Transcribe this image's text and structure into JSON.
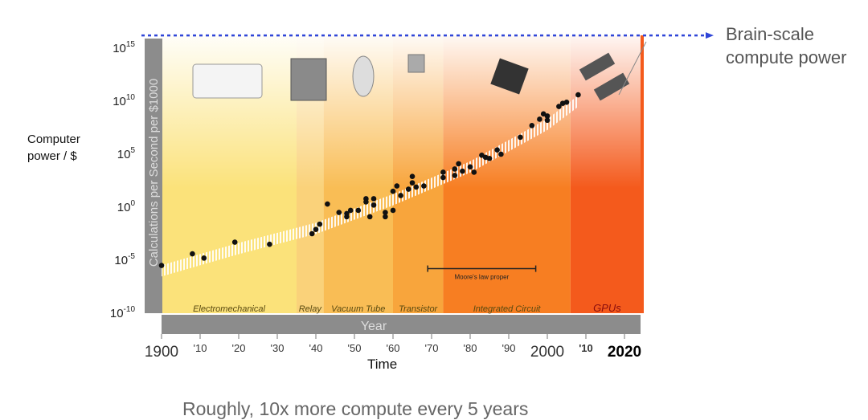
{
  "chart_data": {
    "type": "scatter",
    "title": "",
    "xlabel": "Time",
    "inner_xlabel": "Year",
    "ylabel": "Computer power / $",
    "inner_ylabel": "Calculations per Second per $1000",
    "y_scale": "log",
    "xlim": [
      1900,
      2025
    ],
    "ylim_log10": [
      -10,
      16.2
    ],
    "x_ticks": [
      {
        "value": 1900,
        "label": "1900"
      },
      {
        "value": 1910,
        "label": "'10"
      },
      {
        "value": 1920,
        "label": "'20"
      },
      {
        "value": 1930,
        "label": "'30"
      },
      {
        "value": 1940,
        "label": "'40"
      },
      {
        "value": 1950,
        "label": "'50"
      },
      {
        "value": 1960,
        "label": "'60"
      },
      {
        "value": 1970,
        "label": "'70"
      },
      {
        "value": 1980,
        "label": "'80"
      },
      {
        "value": 1990,
        "label": "'90"
      },
      {
        "value": 2000,
        "label": "2000"
      },
      {
        "value": 2010,
        "label": "'10"
      },
      {
        "value": 2020,
        "label": "2020"
      }
    ],
    "y_ticks": [
      {
        "exp": 15,
        "label": "10",
        "sup": "15"
      },
      {
        "exp": 10,
        "label": "10",
        "sup": "10"
      },
      {
        "exp": 5,
        "label": "10",
        "sup": "5"
      },
      {
        "exp": 0,
        "label": "10",
        "sup": "0"
      },
      {
        "exp": -5,
        "label": "10",
        "sup": "-5"
      },
      {
        "exp": -10,
        "label": "10",
        "sup": "-10"
      }
    ],
    "eras": [
      {
        "name": "Electromechanical",
        "start": 1900,
        "end": 1935,
        "color": "#fbe27a"
      },
      {
        "name": "Relay",
        "start": 1935,
        "end": 1942,
        "color": "#fad27a"
      },
      {
        "name": "Vacuum Tube",
        "start": 1942,
        "end": 1960,
        "color": "#f9bd55"
      },
      {
        "name": "Transistor",
        "start": 1960,
        "end": 1973,
        "color": "#f8a53c"
      },
      {
        "name": "Integrated Circuit",
        "start": 1973,
        "end": 2006,
        "color": "#f77e22"
      },
      {
        "name": "GPUs",
        "start": 2006,
        "end": 2025,
        "color": "#f45a1c"
      }
    ],
    "points_log10": [
      [
        1900,
        -5.5
      ],
      [
        1908,
        -4.4
      ],
      [
        1911,
        -4.8
      ],
      [
        1919,
        -3.3
      ],
      [
        1928,
        -3.5
      ],
      [
        1939,
        -2.5
      ],
      [
        1940,
        -2.1
      ],
      [
        1941,
        -1.6
      ],
      [
        1943,
        0.3
      ],
      [
        1946,
        -0.5
      ],
      [
        1948,
        -0.9
      ],
      [
        1948,
        -0.6
      ],
      [
        1949,
        -0.3
      ],
      [
        1951,
        -0.3
      ],
      [
        1953,
        0.8
      ],
      [
        1953,
        0.5
      ],
      [
        1954,
        -0.9
      ],
      [
        1955,
        0.8
      ],
      [
        1955,
        0.2
      ],
      [
        1958,
        -0.5
      ],
      [
        1958,
        -0.9
      ],
      [
        1960,
        -0.3
      ],
      [
        1960,
        1.5
      ],
      [
        1961,
        2.0
      ],
      [
        1962,
        1.1
      ],
      [
        1964,
        1.7
      ],
      [
        1965,
        2.3
      ],
      [
        1965,
        2.9
      ],
      [
        1966,
        1.9
      ],
      [
        1968,
        2.0
      ],
      [
        1973,
        3.3
      ],
      [
        1973,
        2.8
      ],
      [
        1976,
        3.6
      ],
      [
        1976,
        3.0
      ],
      [
        1977,
        4.1
      ],
      [
        1978,
        3.4
      ],
      [
        1980,
        3.8
      ],
      [
        1981,
        3.3
      ],
      [
        1983,
        4.9
      ],
      [
        1984,
        4.7
      ],
      [
        1985,
        4.6
      ],
      [
        1987,
        5.4
      ],
      [
        1988,
        5.0
      ],
      [
        1993,
        6.6
      ],
      [
        1996,
        7.7
      ],
      [
        1998,
        8.3
      ],
      [
        1999,
        8.8
      ],
      [
        2000,
        8.2
      ],
      [
        2000,
        8.6
      ],
      [
        2003,
        9.5
      ],
      [
        2004,
        9.8
      ],
      [
        2005,
        9.9
      ],
      [
        2008,
        10.6
      ]
    ],
    "trend_log10": [
      [
        1900,
        -6
      ],
      [
        1920,
        -3.9
      ],
      [
        1940,
        -2
      ],
      [
        1960,
        0.7
      ],
      [
        1980,
        3.8
      ],
      [
        2000,
        7.8
      ],
      [
        2008,
        10
      ]
    ],
    "brain_scale": {
      "log10": 16.2,
      "label_line1": "Brain-scale",
      "label_line2": "compute power",
      "color": "#2f45d8"
    },
    "annotation": {
      "label": "Moore's law proper",
      "start": 1969,
      "end": 1997,
      "log10": -5.8
    },
    "caption": "Roughly, 10x more compute every 5 years"
  }
}
